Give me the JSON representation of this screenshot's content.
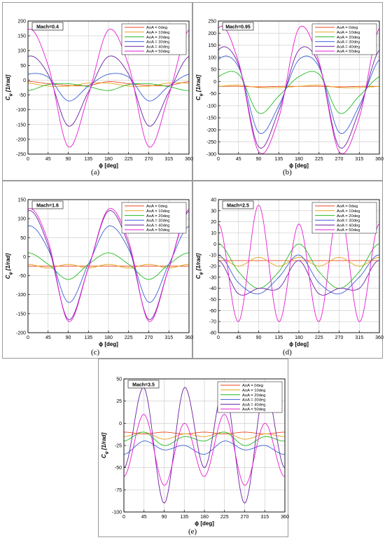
{
  "legend_colors": [
    "#e8471c",
    "#e6a21a",
    "#22bb22",
    "#3b5fd6",
    "#6a1fa0",
    "#e81ad2"
  ],
  "chart_data": [
    {
      "type": "line",
      "caption": "(a)",
      "title_box": "Mach=0.4",
      "xlabel": "ϕ [deg]",
      "ylabel_main": "C",
      "ylabel_sub": "φ",
      "ylabel_unit": "[1/rad]",
      "xlim": [
        0,
        360
      ],
      "ylim": [
        -250,
        200
      ],
      "xticks": [
        "0",
        "45",
        "90",
        "135",
        "180",
        "225",
        "270",
        "315",
        "360"
      ],
      "yticks": [
        "-250",
        "-200",
        "-150",
        "-100",
        "-50",
        "0",
        "50",
        "100",
        "150",
        "200"
      ],
      "grid": true,
      "legend_position": "top-right",
      "series": [
        {
          "name": "AoA = 0deg",
          "values": [
            -5,
            -12,
            -18,
            -18,
            -5,
            -12,
            -18,
            -18,
            -5
          ]
        },
        {
          "name": "AoA = 10deg",
          "values": [
            -10,
            -20,
            -20,
            -10,
            -10,
            -20,
            -20,
            -10,
            -10
          ]
        },
        {
          "name": "AoA = 20deg",
          "values": [
            -35,
            -15,
            -12,
            -22,
            -35,
            -15,
            -12,
            -22,
            -35
          ]
        },
        {
          "name": "AoA = 30deg",
          "values": [
            20,
            10,
            -70,
            -20,
            20,
            10,
            -70,
            -20,
            20
          ]
        },
        {
          "name": "AoA = 40deg",
          "values": [
            80,
            20,
            -155,
            -40,
            80,
            20,
            -155,
            -40,
            80
          ]
        },
        {
          "name": "AoA = 50deg",
          "values": [
            170,
            50,
            -225,
            -50,
            170,
            50,
            -225,
            -50,
            170
          ]
        }
      ]
    },
    {
      "type": "line",
      "caption": "(b)",
      "title_box": "Mach=0.95",
      "xlabel": "ϕ [deg]",
      "ylabel_main": "C",
      "ylabel_sub": "φ",
      "ylabel_unit": "[1/rad]",
      "xlim": [
        0,
        360
      ],
      "ylim": [
        -300,
        250
      ],
      "xticks": [
        "0",
        "45",
        "90",
        "135",
        "180",
        "225",
        "270",
        "315",
        "360"
      ],
      "yticks": [
        "-300",
        "-250",
        "-200",
        "-150",
        "-100",
        "-50",
        "0",
        "50",
        "100",
        "150",
        "200",
        "250"
      ],
      "grid": true,
      "legend_position": "top-right",
      "series": [
        {
          "name": "AoA = 0deg",
          "values": [
            -20,
            -20,
            -22,
            -20,
            -20,
            -20,
            -22,
            -20,
            -20
          ]
        },
        {
          "name": "AoA = 10deg",
          "values": [
            -20,
            -15,
            -25,
            -25,
            -20,
            -15,
            -25,
            -25,
            -20
          ]
        },
        {
          "name": "AoA = 20deg",
          "values": [
            20,
            30,
            -130,
            -60,
            20,
            30,
            -130,
            -60,
            20
          ]
        },
        {
          "name": "AoA = 30deg",
          "values": [
            90,
            60,
            -210,
            -100,
            90,
            60,
            -210,
            -100,
            90
          ]
        },
        {
          "name": "AoA = 40deg",
          "values": [
            130,
            70,
            -270,
            -120,
            130,
            70,
            -270,
            -120,
            130
          ]
        },
        {
          "name": "AoA = 50deg",
          "values": [
            220,
            80,
            -290,
            -150,
            220,
            80,
            -290,
            -150,
            220
          ]
        }
      ]
    },
    {
      "type": "line",
      "caption": "(c)",
      "title_box": "Mach=1.6",
      "xlabel": "ϕ [deg]",
      "ylabel_main": "C",
      "ylabel_sub": "φ",
      "ylabel_unit": "[1/rad]",
      "xlim": [
        0,
        360
      ],
      "ylim": [
        -200,
        150
      ],
      "xticks": [
        "0",
        "45",
        "90",
        "135",
        "180",
        "225",
        "270",
        "315",
        "360"
      ],
      "yticks": [
        "-200",
        "-150",
        "-100",
        "-50",
        "0",
        "50",
        "100",
        "150"
      ],
      "grid": true,
      "legend_position": "top-right",
      "series": [
        {
          "name": "AoA = 0deg",
          "values": [
            -25,
            -25,
            -25,
            -25,
            -25,
            -25,
            -25,
            -25,
            -25
          ]
        },
        {
          "name": "AoA = 10deg",
          "values": [
            -20,
            -30,
            -20,
            -30,
            -20,
            -30,
            -20,
            -30,
            -20
          ]
        },
        {
          "name": "AoA = 20deg",
          "values": [
            10,
            -20,
            -60,
            -20,
            10,
            -20,
            -60,
            -20,
            10
          ]
        },
        {
          "name": "AoA = 30deg",
          "values": [
            80,
            20,
            -120,
            -20,
            80,
            20,
            -120,
            -20,
            80
          ]
        },
        {
          "name": "AoA = 40deg",
          "values": [
            120,
            30,
            -165,
            -30,
            120,
            30,
            -165,
            -30,
            120
          ]
        },
        {
          "name": "AoA = 50deg",
          "values": [
            125,
            40,
            -170,
            -30,
            125,
            40,
            -170,
            -30,
            125
          ]
        }
      ]
    },
    {
      "type": "line",
      "caption": "(d)",
      "title_box": "Mach=2.5",
      "xlabel": "ϕ [deg]",
      "ylabel_main": "C",
      "ylabel_sub": "φ",
      "ylabel_unit": "[1/rad]",
      "xlim": [
        0,
        360
      ],
      "ylim": [
        -80,
        40
      ],
      "xticks": [
        "0",
        "45",
        "90",
        "135",
        "180",
        "225",
        "270",
        "315",
        "360"
      ],
      "yticks": [
        "-80",
        "-70",
        "-60",
        "-50",
        "-40",
        "-30",
        "-20",
        "-10",
        "0",
        "10",
        "20",
        "30",
        "40"
      ],
      "grid": true,
      "legend_position": "top-right",
      "series": [
        {
          "name": "AoA = 0deg",
          "values": [
            -15,
            -15,
            -15,
            -15,
            -15,
            -15,
            -15,
            -15,
            -15
          ]
        },
        {
          "name": "AoA = 10deg",
          "values": [
            -12,
            -20,
            -12,
            -20,
            -12,
            -20,
            -12,
            -20,
            -12
          ]
        },
        {
          "name": "AoA = 20deg",
          "values": [
            0,
            -25,
            -40,
            -25,
            0,
            -25,
            -40,
            -25,
            0
          ]
        },
        {
          "name": "AoA = 30deg",
          "values": [
            -10,
            -35,
            -45,
            -30,
            -10,
            -35,
            -45,
            -30,
            -10
          ]
        },
        {
          "name": "AoA = 40deg",
          "values": [
            -15,
            -45,
            -40,
            -40,
            -15,
            -45,
            -40,
            -40,
            -15
          ]
        },
        {
          "name": "AoA = 50deg",
          "values": [
            18,
            -70,
            35,
            -70,
            18,
            -70,
            35,
            -70,
            18
          ]
        }
      ]
    },
    {
      "type": "line",
      "caption": "(e)",
      "title_box": "Mach=3.5",
      "xlabel": "ϕ [deg]",
      "ylabel_main": "C",
      "ylabel_sub": "φ",
      "ylabel_unit": "[1/rad]",
      "xlim": [
        0,
        360
      ],
      "ylim": [
        -100,
        50
      ],
      "xticks": [
        "0",
        "45",
        "90",
        "135",
        "180",
        "225",
        "270",
        "315",
        "360"
      ],
      "yticks": [
        "-100",
        "-75",
        "-50",
        "-25",
        "0",
        "25",
        "50"
      ],
      "grid": true,
      "legend_position": "top-right",
      "series": [
        {
          "name": "AoA = 0deg",
          "values": [
            -10,
            -12,
            -10,
            -12,
            -10,
            -12,
            -10,
            -12,
            -10
          ]
        },
        {
          "name": "AoA = 10deg",
          "values": [
            -15,
            -10,
            -18,
            -12,
            -15,
            -10,
            -18,
            -12,
            -15
          ]
        },
        {
          "name": "AoA = 20deg",
          "values": [
            -20,
            -10,
            -25,
            -15,
            -20,
            -10,
            -25,
            -15,
            -20
          ]
        },
        {
          "name": "AoA = 30deg",
          "values": [
            -35,
            -20,
            -30,
            -25,
            -35,
            -20,
            -30,
            -25,
            -35
          ]
        },
        {
          "name": "AoA = 40deg",
          "values": [
            -50,
            40,
            -90,
            40,
            -50,
            40,
            -90,
            40,
            -50
          ]
        },
        {
          "name": "AoA = 50deg",
          "values": [
            -60,
            10,
            -70,
            0,
            -60,
            10,
            -70,
            0,
            -60
          ]
        }
      ]
    }
  ]
}
